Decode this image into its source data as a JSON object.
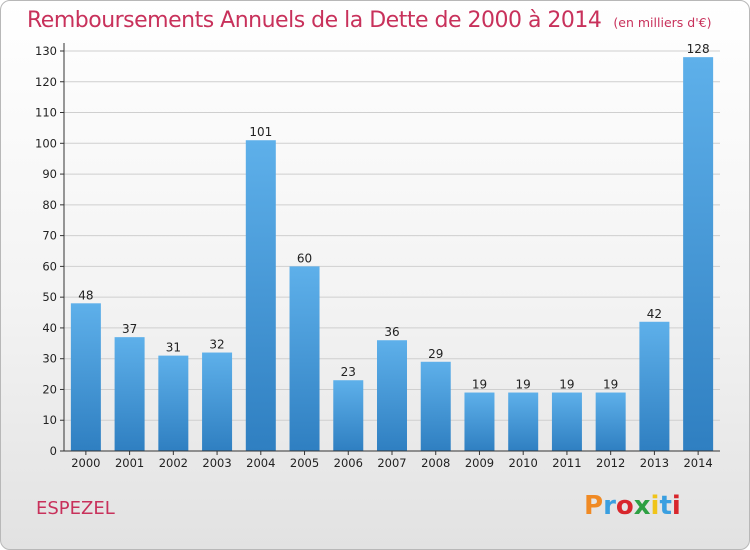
{
  "header": {
    "title": "Remboursements Annuels de la Dette de 2000 à 2014",
    "unit": "(en milliers d'€)"
  },
  "footer": {
    "commune": "ESPEZEL",
    "logo": "Proxiti",
    "logo_colors": [
      "#f08a24",
      "#3a9fe0",
      "#d8262c",
      "#2ea043",
      "#f0c419",
      "#3a9fe0",
      "#d8262c"
    ]
  },
  "colors": {
    "bar_top": "#5eb0ea",
    "bar_bottom": "#2f7fc1",
    "accent": "#c8315b"
  },
  "chart_data": {
    "type": "bar",
    "title": "Remboursements Annuels de la Dette de 2000 à 2014",
    "subtitle": "(en milliers d'€)",
    "xlabel": "",
    "ylabel": "",
    "categories": [
      "2000",
      "2001",
      "2002",
      "2003",
      "2004",
      "2005",
      "2006",
      "2007",
      "2008",
      "2009",
      "2010",
      "2011",
      "2012",
      "2013",
      "2014"
    ],
    "values": [
      48,
      37,
      31,
      32,
      101,
      60,
      23,
      36,
      29,
      19,
      19,
      19,
      19,
      42,
      128
    ],
    "ylim": [
      0,
      130
    ],
    "yticks": [
      0,
      10,
      20,
      30,
      40,
      50,
      60,
      70,
      80,
      90,
      100,
      110,
      120,
      130
    ],
    "grid": true,
    "legend": "none"
  }
}
